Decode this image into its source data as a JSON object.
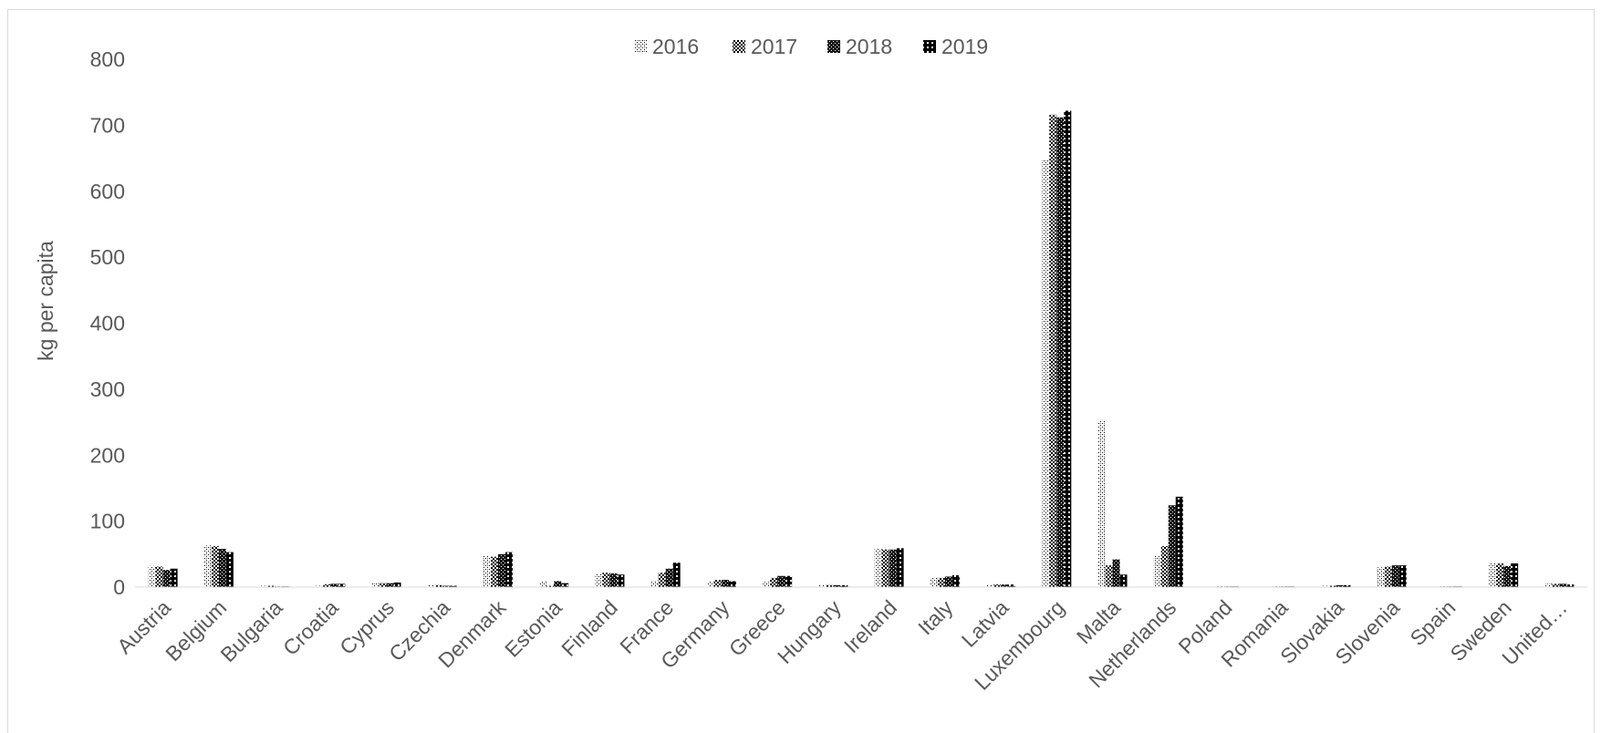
{
  "chart_data": {
    "type": "bar",
    "title": "",
    "xlabel": "",
    "ylabel": "kg per capita",
    "ylim": [
      0,
      800
    ],
    "yticks": [
      0,
      100,
      200,
      300,
      400,
      500,
      600,
      700,
      800
    ],
    "legend_position": "top",
    "grid": false,
    "categories": [
      "Austria",
      "Belgium",
      "Bulgaria",
      "Croatia",
      "Cyprus",
      "Czechia",
      "Denmark",
      "Estonia",
      "Finland",
      "France",
      "Germany",
      "Greece",
      "Hungary",
      "Ireland",
      "Italy",
      "Latvia",
      "Luxembourg",
      "Malta",
      "Netherlands",
      "Poland",
      "Romania",
      "Slovakia",
      "Slovenia",
      "Spain",
      "Sweden",
      "United…"
    ],
    "series": [
      {
        "name": "2016",
        "pattern": "dots-small",
        "values": [
          32,
          63,
          2,
          2,
          6,
          3,
          48,
          9,
          20,
          10,
          9,
          8,
          3,
          59,
          14,
          3,
          648,
          253,
          48,
          1,
          1,
          2,
          30,
          1,
          36,
          5
        ]
      },
      {
        "name": "2017",
        "pattern": "dots-medium",
        "values": [
          31,
          62,
          2,
          4,
          6,
          3,
          46,
          2,
          22,
          22,
          11,
          14,
          3,
          57,
          14,
          4,
          716,
          33,
          62,
          1,
          1,
          2,
          31,
          1,
          36,
          5
        ]
      },
      {
        "name": "2018",
        "pattern": "dots-dense",
        "values": [
          26,
          58,
          1,
          5,
          6,
          2,
          50,
          9,
          21,
          28,
          11,
          17,
          3,
          57,
          16,
          4,
          712,
          42,
          124,
          1,
          1,
          3,
          33,
          1,
          32,
          5
        ]
      },
      {
        "name": "2019",
        "pattern": "dots-black",
        "values": [
          28,
          53,
          1,
          5,
          7,
          2,
          53,
          6,
          19,
          37,
          9,
          17,
          3,
          59,
          18,
          4,
          722,
          19,
          137,
          1,
          1,
          3,
          33,
          1,
          36,
          4
        ]
      }
    ]
  }
}
